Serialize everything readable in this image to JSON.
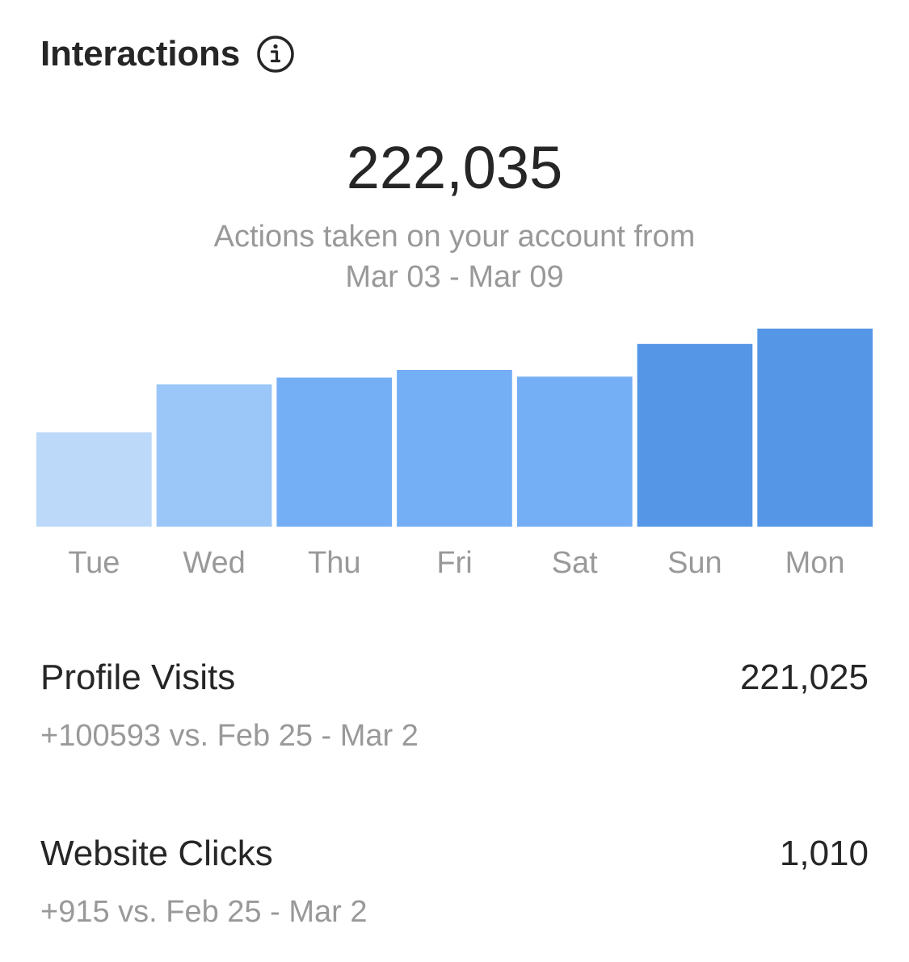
{
  "header": {
    "title": "Interactions",
    "info_icon": "info-icon"
  },
  "summary": {
    "total": "222,035",
    "subtitle_line1": "Actions taken on your account from",
    "subtitle_line2": "Mar 03 - Mar 09"
  },
  "chart_data": {
    "type": "bar",
    "categories": [
      "Tue",
      "Wed",
      "Thu",
      "Fri",
      "Sat",
      "Sun",
      "Mon"
    ],
    "values": [
      98,
      148,
      155,
      163,
      156,
      190,
      206
    ],
    "ylim": [
      0,
      210
    ],
    "colors": [
      "#bcd9fa",
      "#9ac6f8",
      "#74aef5",
      "#74aef5",
      "#74aef5",
      "#5596e6",
      "#5596e6"
    ],
    "grid": false,
    "legend": "none"
  },
  "metrics": [
    {
      "label": "Profile Visits",
      "value": "221,025",
      "compare": "+100593 vs. Feb 25 - Mar 2"
    },
    {
      "label": "Website Clicks",
      "value": "1,010",
      "compare": "+915 vs. Feb 25 - Mar 2"
    }
  ]
}
